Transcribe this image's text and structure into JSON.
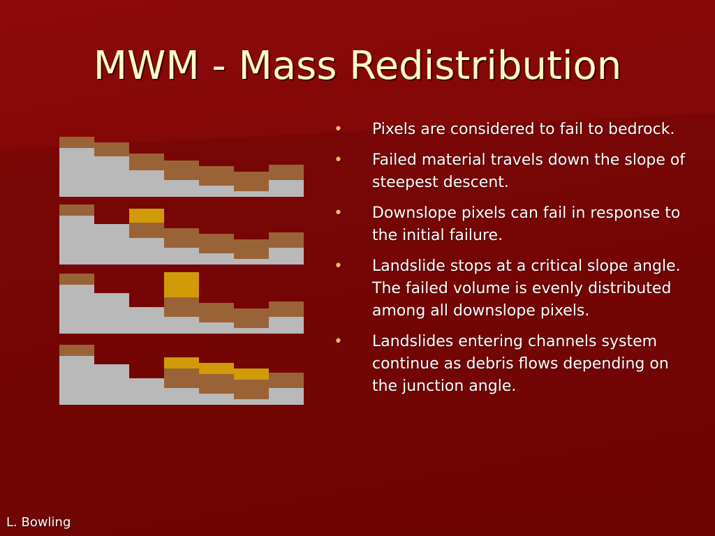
{
  "slide": {
    "title": "MWM - Mass Redistribution",
    "footer": "L. Bowling"
  },
  "bullets": [
    "Pixels are considered to fail to bedrock.",
    "Failed material travels down the slope of steepest descent.",
    "Downslope pixels can fail in response to the initial failure.",
    "Landslide stops at a critical slope angle.  The failed volume is evenly distributed among all downslope pixels.",
    "Landslides entering channels system continue as debris flows depending on the junction angle."
  ],
  "colors": {
    "bedrock": "#b9b9b9",
    "soil": "#9a6337",
    "failed": "#d19a08",
    "title": "#fffbc8",
    "bullet": "#f2b85e"
  },
  "panels": [
    {
      "bedrock": [
        70,
        58,
        38,
        24,
        16,
        8,
        24
      ],
      "soil": [
        16,
        20,
        24,
        28,
        28,
        28,
        22
      ],
      "failed": [
        0,
        0,
        0,
        0,
        0,
        0,
        0
      ]
    },
    {
      "bedrock": [
        70,
        58,
        38,
        24,
        16,
        8,
        24
      ],
      "soil": [
        16,
        0,
        22,
        28,
        28,
        28,
        22
      ],
      "failed": [
        0,
        0,
        20,
        0,
        0,
        0,
        0
      ]
    },
    {
      "bedrock": [
        70,
        58,
        38,
        24,
        16,
        8,
        24
      ],
      "soil": [
        16,
        0,
        0,
        28,
        28,
        28,
        22
      ],
      "failed": [
        0,
        0,
        0,
        36,
        0,
        0,
        0
      ]
    },
    {
      "bedrock": [
        70,
        58,
        38,
        24,
        16,
        8,
        24
      ],
      "soil": [
        16,
        0,
        0,
        28,
        28,
        28,
        22
      ],
      "failed": [
        0,
        0,
        0,
        16,
        16,
        16,
        0
      ]
    }
  ]
}
